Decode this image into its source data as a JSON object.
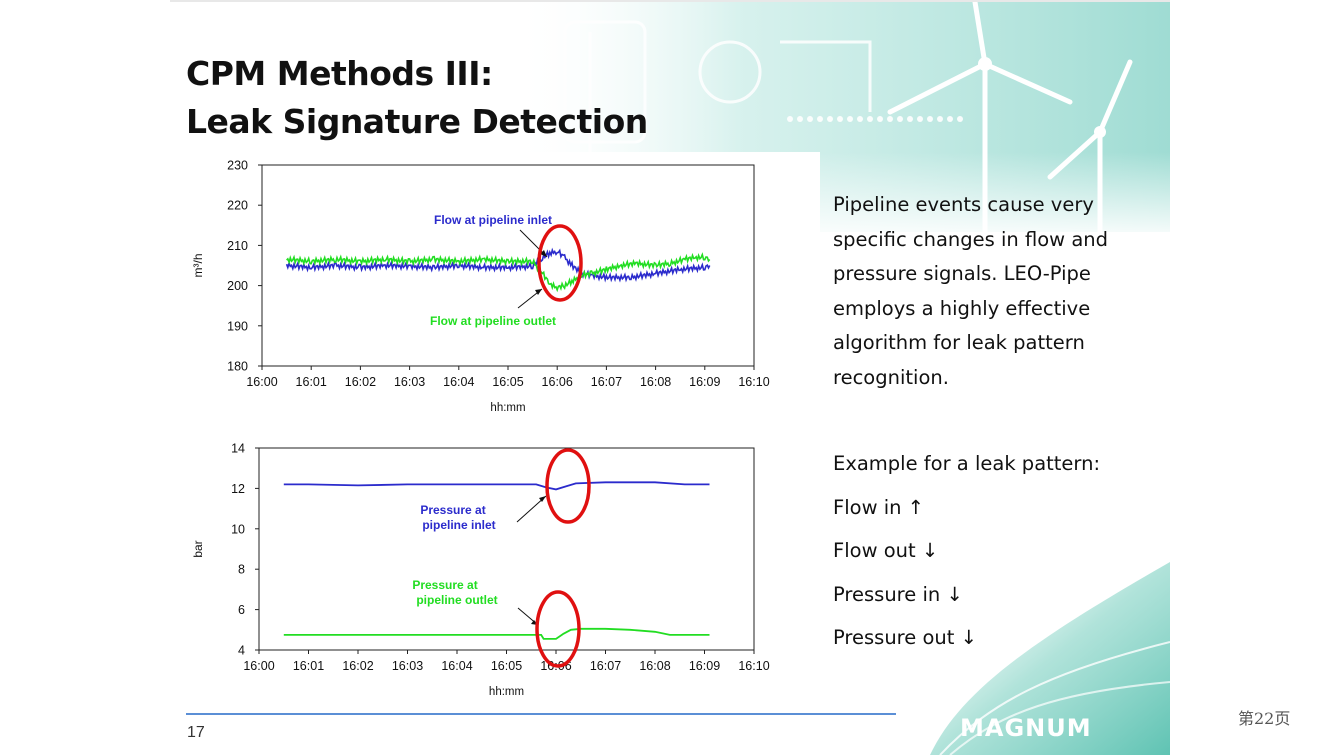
{
  "slide": {
    "title_line1": "CPM Methods III:",
    "title_line2": "Leak Signature Detection",
    "description": "Pipeline events cause very specific changes in flow and pressure signals. LEO-Pipe employs a highly effective algorithm for leak pattern recognition.",
    "example_heading": "Example for a leak pattern:",
    "example_items": [
      "Flow in ↑",
      "Flow out ↓",
      "Pressure in ↓",
      "Pressure out ↓"
    ],
    "page_number": "17",
    "logo_text": "MAGNUM",
    "viewer_page_label": "第22页"
  },
  "colors": {
    "inlet_series": "#2b2bcc",
    "outlet_series": "#22dd22",
    "highlight": "#e01010",
    "footer_line": "#5b8fd6",
    "decor_teal": "#7fd0c4"
  },
  "chart_data": [
    {
      "type": "line",
      "ylabel": "m³/h",
      "xlabel": "hh:mm",
      "x_ticks": [
        "16:00",
        "16:01",
        "16:02",
        "16:03",
        "16:04",
        "16:05",
        "16:06",
        "16:07",
        "16:08",
        "16:09",
        "16:10"
      ],
      "y_ticks": [
        "180",
        "190",
        "200",
        "210",
        "220",
        "230"
      ],
      "ylim": [
        180,
        230
      ],
      "xlim_minutes": [
        0,
        10
      ],
      "grid": false,
      "series": [
        {
          "name": "Flow at pipeline inlet",
          "color": "#2b2bcc",
          "x_minutes": [
            0.5,
            1,
            1.5,
            2,
            2.5,
            3,
            3.5,
            4,
            4.5,
            5,
            5.5,
            5.7,
            5.85,
            6.0,
            6.15,
            6.3,
            6.5,
            6.7,
            7,
            7.5,
            8,
            8.5,
            9,
            9.1
          ],
          "values": [
            205,
            204.5,
            205,
            204.5,
            205,
            204.8,
            204.5,
            205,
            204.5,
            204.5,
            204.8,
            207,
            208,
            208.5,
            207,
            205,
            203,
            202.5,
            202,
            202,
            203,
            204,
            204.5,
            205
          ]
        },
        {
          "name": "Flow at pipeline outlet",
          "color": "#22dd22",
          "x_minutes": [
            0.5,
            1,
            1.5,
            2,
            2.5,
            3,
            3.5,
            4,
            4.5,
            5,
            5.5,
            5.7,
            5.85,
            6.0,
            6.15,
            6.3,
            6.5,
            6.7,
            7,
            7.3,
            7.6,
            8,
            8.3,
            8.6,
            8.8,
            9,
            9.1
          ],
          "values": [
            206.5,
            206,
            206.5,
            206,
            206.5,
            206,
            206.5,
            206,
            206.5,
            206,
            206,
            203,
            200.5,
            199.5,
            200,
            201,
            202.5,
            203,
            204,
            205,
            205.5,
            205,
            205.5,
            206.5,
            207,
            207,
            206.5
          ]
        }
      ],
      "annotations": [
        "Flow at pipeline inlet",
        "Flow at pipeline outlet"
      ]
    },
    {
      "type": "line",
      "ylabel": "bar",
      "xlabel": "hh:mm",
      "x_ticks": [
        "16:00",
        "16:01",
        "16:02",
        "16:03",
        "16:04",
        "16:05",
        "16:06",
        "16:07",
        "16:08",
        "16:09",
        "16:10"
      ],
      "y_ticks": [
        "4",
        "6",
        "8",
        "10",
        "12",
        "14"
      ],
      "ylim": [
        4,
        14
      ],
      "xlim_minutes": [
        0,
        10
      ],
      "grid": false,
      "series": [
        {
          "name": "Pressure at pipeline inlet",
          "color": "#2b2bcc",
          "x_minutes": [
            0.5,
            1,
            2,
            3,
            4,
            5,
            5.6,
            5.8,
            6.0,
            6.2,
            6.4,
            7,
            8,
            8.6,
            9.1
          ],
          "values": [
            12.2,
            12.2,
            12.15,
            12.2,
            12.2,
            12.2,
            12.2,
            12.05,
            11.95,
            12.1,
            12.25,
            12.3,
            12.3,
            12.2,
            12.2
          ]
        },
        {
          "name": "Pressure at pipeline outlet",
          "color": "#22dd22",
          "x_minutes": [
            0.5,
            1,
            2,
            3,
            4,
            5,
            5.7,
            5.75,
            6.0,
            6.15,
            6.3,
            6.5,
            7,
            7.5,
            8,
            8.3,
            9.1
          ],
          "values": [
            4.75,
            4.75,
            4.75,
            4.75,
            4.75,
            4.75,
            4.75,
            4.55,
            4.55,
            4.8,
            5.0,
            5.05,
            5.05,
            5.0,
            4.9,
            4.75,
            4.75
          ]
        }
      ],
      "annotations": [
        "Pressure at pipeline inlet",
        "Pressure at pipeline outlet"
      ]
    }
  ],
  "labels": {
    "flow_inlet": "Flow at pipeline inlet",
    "flow_outlet": "Flow at pipeline outlet",
    "pressure_inlet_1": "Pressure at",
    "pressure_inlet_2": "pipeline inlet",
    "pressure_outlet_1": "Pressure at",
    "pressure_outlet_2": "pipeline outlet"
  }
}
